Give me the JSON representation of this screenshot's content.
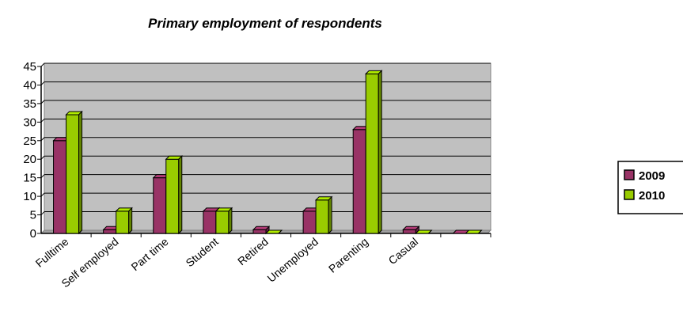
{
  "chart_data": {
    "type": "bar",
    "title": "Primary employment of respondents",
    "categories": [
      "Fulltime",
      "Self employed",
      "Part time",
      "Student",
      "Retired",
      "Unemployed",
      "Parenting",
      "Casual",
      ""
    ],
    "series": [
      {
        "name": "2009",
        "values": [
          25,
          1,
          15,
          6,
          1,
          6,
          28,
          1,
          0
        ],
        "color": "#993366"
      },
      {
        "name": "2010",
        "values": [
          32,
          6,
          20,
          6,
          0,
          9,
          43,
          0,
          0
        ],
        "color": "#99cc00"
      }
    ],
    "ylim": [
      0,
      45
    ],
    "yticks": [
      0,
      5,
      10,
      15,
      20,
      25,
      30,
      35,
      40,
      45
    ],
    "grid": true,
    "legend": "right",
    "plot_background": "#c0c0c0"
  }
}
